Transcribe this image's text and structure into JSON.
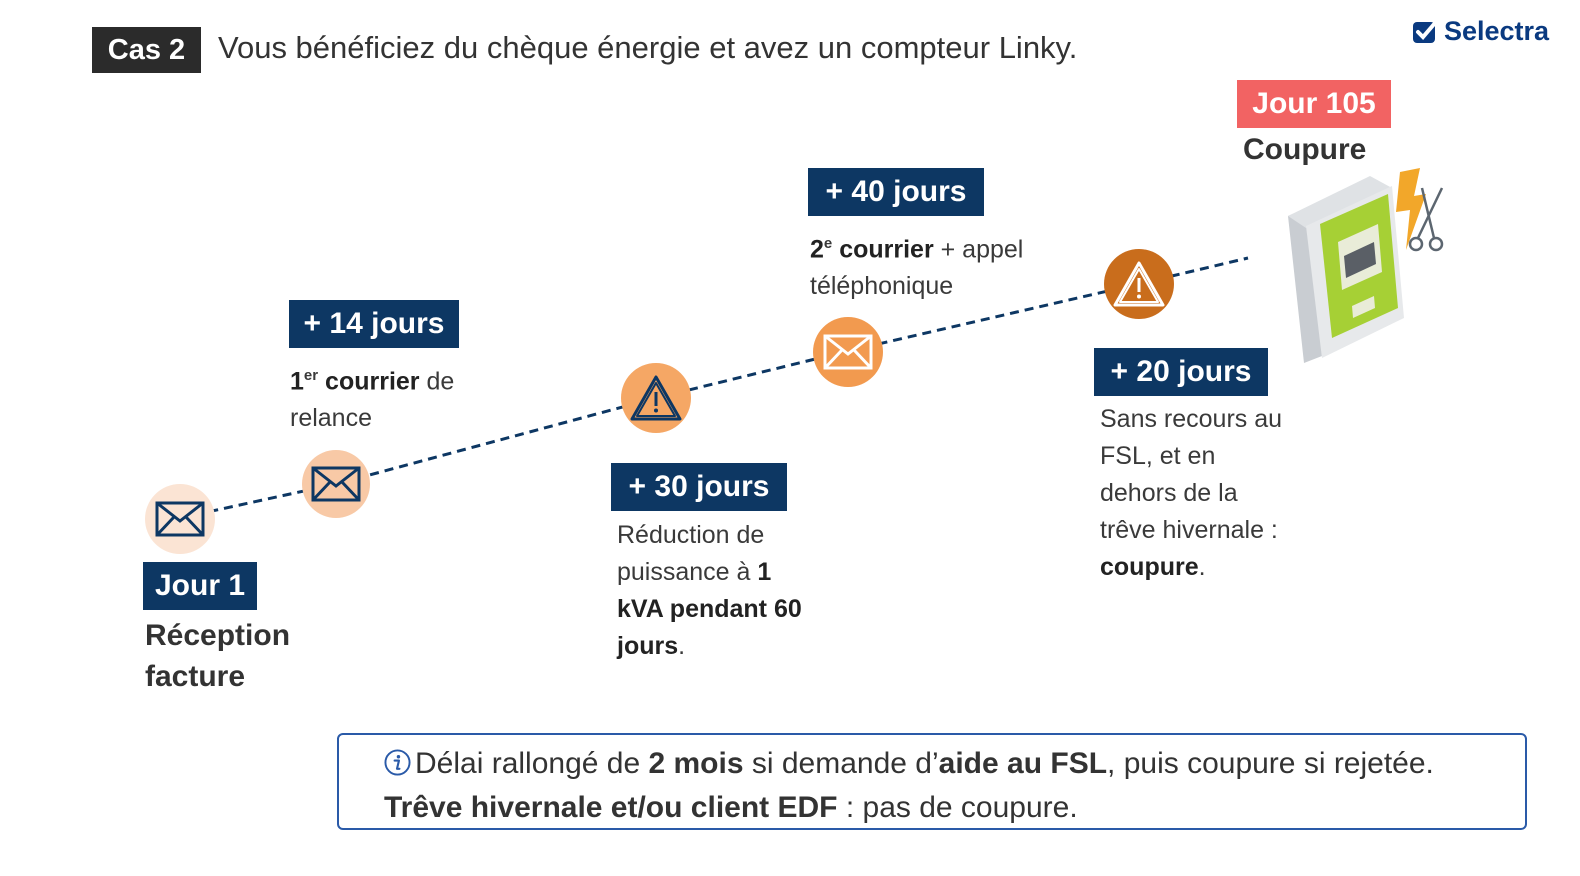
{
  "header": {
    "case_label": "Cas 2",
    "title": "Vous bénéficiez du chèque énergie et avez un compteur Linky."
  },
  "brand": {
    "name": "Selectra",
    "color": "#0a3a80"
  },
  "colors": {
    "tag_bg": "#0d3763",
    "final_tag_bg": "#f26363",
    "circle_light": "#fbdcc6",
    "circle_mid": "#f5a765",
    "circle_dark": "#c96d1c"
  },
  "steps": [
    {
      "tag": "Jour 1",
      "label_line1": "Réception",
      "label_line2": "facture",
      "icon": "envelope-icon"
    },
    {
      "tag": "+ 14 jours",
      "sup": "er",
      "num": "1",
      "bold": "courrier",
      "rest": " de",
      "line2": "relance",
      "icon": "envelope-icon"
    },
    {
      "tag": "+ 30 jours",
      "line1": "Réduction de",
      "line2_text": "puissance à ",
      "line2_bold": "1",
      "line3": "kVA pendant 60",
      "line4_bold": "jours",
      "line4_end": ".",
      "icon": "warning-icon"
    },
    {
      "tag": "+ 40 jours",
      "num": "2",
      "sup": "e",
      "bold": "courrier",
      "rest": " + appel",
      "line2": "téléphonique",
      "icon": "envelope-icon"
    },
    {
      "tag": "+ 20 jours",
      "line1": "Sans recours au",
      "line2": "FSL, et en",
      "line3": "dehors de la",
      "line4": "trêve hivernale :",
      "line5_bold": "coupure",
      "line5_end": ".",
      "icon": "warning-icon"
    },
    {
      "tag": "Jour 105",
      "label": "Coupure",
      "icon": "meter-icon"
    }
  ],
  "info": {
    "p1": "Délai rallongé de ",
    "b1": "2 mois",
    "p2": " si demande d’",
    "b2": "aide au FSL",
    "p3": ", puis coupure si rejetée. ",
    "b3": "Trêve hivernale et/ou client EDF",
    "p4": " : pas de coupure."
  }
}
